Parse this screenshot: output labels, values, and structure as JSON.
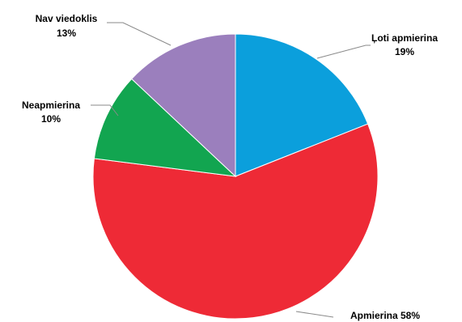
{
  "chart_data": {
    "type": "pie",
    "title": "",
    "slices": [
      {
        "label": "Ļoti apmierina",
        "value": 19,
        "color": "#0b9fdc",
        "label_line1": "Ļoti apmierina",
        "label_line2": "19%"
      },
      {
        "label": "Apmierina",
        "value": 58,
        "color": "#ee2a36",
        "label_line1": "Apmierina 58%",
        "label_line2": ""
      },
      {
        "label": "Neapmierina",
        "value": 10,
        "color": "#12a550",
        "label_line1": "Neapmierina",
        "label_line2": "10%"
      },
      {
        "label": "Nav viedoklis",
        "value": 13,
        "color": "#9b7fbd",
        "label_line1": "Nav viedoklis",
        "label_line2": "13%"
      }
    ]
  }
}
